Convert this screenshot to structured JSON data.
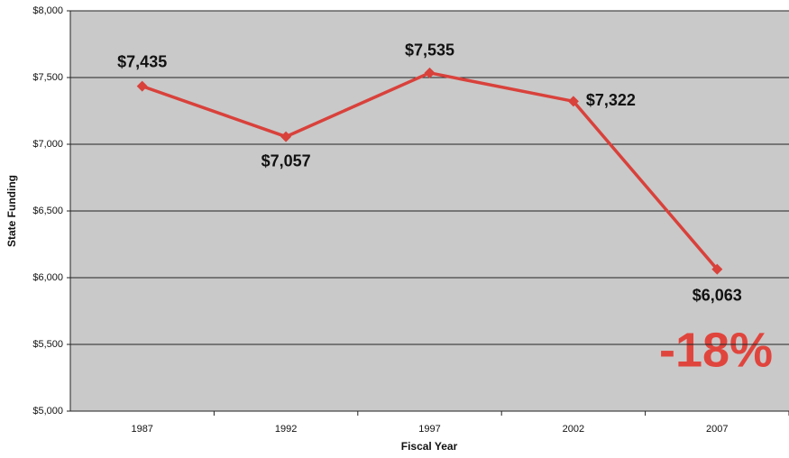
{
  "chart_data": {
    "type": "line",
    "categories": [
      "1987",
      "1992",
      "1997",
      "2002",
      "2007"
    ],
    "series": [
      {
        "name": "State Funding",
        "color": "#d9413b",
        "values": [
          7435,
          7057,
          7535,
          7322,
          6063
        ],
        "value_labels": [
          "$7,435",
          "$7,057",
          "$7,535",
          "$7,322",
          "$6,063"
        ]
      }
    ],
    "ylim": [
      5000,
      8000
    ],
    "yticks": [
      {
        "value": 5000,
        "label": "$5,000"
      },
      {
        "value": 5500,
        "label": "$5,500"
      },
      {
        "value": 6000,
        "label": "$6,000"
      },
      {
        "value": 6500,
        "label": "$6,500"
      },
      {
        "value": 7000,
        "label": "$7,000"
      },
      {
        "value": 7500,
        "label": "$7,500"
      },
      {
        "value": 8000,
        "label": "$8,000"
      }
    ],
    "y_label": "State Funding",
    "x_label": "Fiscal Year",
    "annotation": "-18%",
    "grid": true
  }
}
